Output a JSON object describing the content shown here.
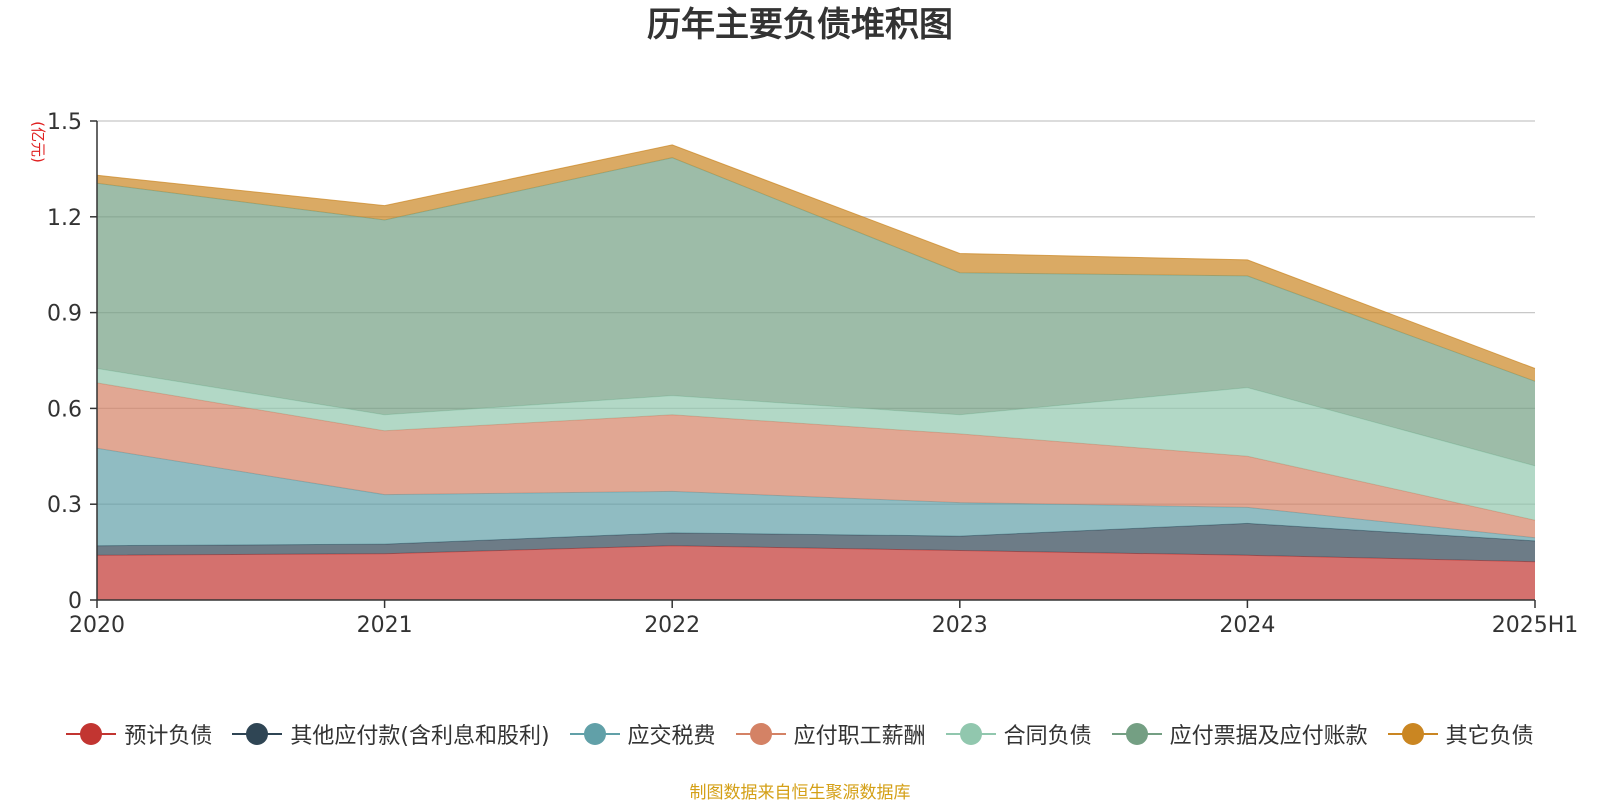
{
  "chart_data": {
    "type": "area",
    "stacked": true,
    "title": "历年主要负债堆积图",
    "unit_label": "(亿元)",
    "x": [
      "2020",
      "2021",
      "2022",
      "2023",
      "2024",
      "2025H1"
    ],
    "ylim": [
      0,
      1.5
    ],
    "yticks": [
      "0",
      "0.3",
      "0.6",
      "0.9",
      "1.2",
      "1.5"
    ],
    "grid": true,
    "legend_position": "bottom",
    "series": [
      {
        "name": "预计负债",
        "color": "#c23531",
        "values": [
          0.14,
          0.145,
          0.17,
          0.155,
          0.14,
          0.12
        ]
      },
      {
        "name": "其他应付款(含利息和股利)",
        "color": "#2f4554",
        "values": [
          0.03,
          0.03,
          0.04,
          0.045,
          0.1,
          0.065
        ]
      },
      {
        "name": "应交税费",
        "color": "#61a0a8",
        "values": [
          0.305,
          0.155,
          0.13,
          0.105,
          0.05,
          0.01
        ]
      },
      {
        "name": "应付职工薪酬",
        "color": "#d48265",
        "values": [
          0.205,
          0.2,
          0.24,
          0.215,
          0.16,
          0.055
        ]
      },
      {
        "name": "合同负债",
        "color": "#91c7ae",
        "values": [
          0.045,
          0.05,
          0.06,
          0.06,
          0.215,
          0.17
        ]
      },
      {
        "name": "应付票据及应付账款",
        "color": "#749f83",
        "values": [
          0.58,
          0.61,
          0.745,
          0.445,
          0.35,
          0.265
        ]
      },
      {
        "name": "其它负债",
        "color": "#ca8622",
        "values": [
          0.025,
          0.045,
          0.04,
          0.06,
          0.05,
          0.04
        ]
      }
    ]
  },
  "source_note": "制图数据来自恒生聚源数据库"
}
